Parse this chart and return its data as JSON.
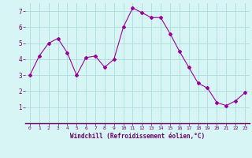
{
  "x": [
    0,
    1,
    2,
    3,
    4,
    5,
    6,
    7,
    8,
    9,
    10,
    11,
    12,
    13,
    14,
    15,
    16,
    17,
    18,
    19,
    20,
    21,
    22,
    23
  ],
  "y": [
    3.0,
    4.2,
    5.0,
    5.3,
    4.4,
    3.0,
    4.1,
    4.2,
    3.5,
    4.0,
    6.0,
    7.2,
    6.9,
    6.6,
    6.6,
    5.6,
    4.5,
    3.5,
    2.5,
    2.2,
    1.3,
    1.1,
    1.4,
    1.9
  ],
  "line_color": "#990099",
  "marker": "D",
  "marker_size": 2,
  "bg_color": "#d8f5f5",
  "grid_color": "#aadddd",
  "xlabel": "Windchill (Refroidissement éolien,°C)",
  "xlabel_color": "#660066",
  "tick_color": "#660066",
  "ylim": [
    0,
    7.5
  ],
  "yticks": [
    1,
    2,
    3,
    4,
    5,
    6,
    7
  ],
  "xticks": [
    0,
    1,
    2,
    3,
    4,
    5,
    6,
    7,
    8,
    9,
    10,
    11,
    12,
    13,
    14,
    15,
    16,
    17,
    18,
    19,
    20,
    21,
    22,
    23
  ],
  "spine_color": "#660066"
}
